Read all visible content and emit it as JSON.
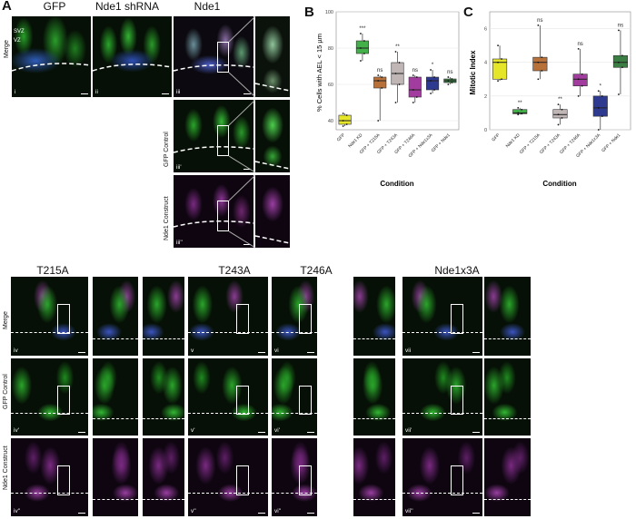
{
  "panels": {
    "A": "A",
    "B": "B",
    "C": "C"
  },
  "top_columns": [
    "GFP",
    "Nde1 shRNA",
    "Nde1"
  ],
  "row_labels": {
    "merge": "Merge",
    "gfp_control": "GFP Control",
    "construct": "Nde1 Construct"
  },
  "zones": {
    "svz": "SVZ",
    "vz": "VZ"
  },
  "top_tiles": {
    "i": "i",
    "ii": "ii",
    "iii": "iii",
    "iii_p": "iii'",
    "iii_pp": "iii''"
  },
  "bottom_columns": [
    "T215A",
    "T243A",
    "T246A",
    "Nde1x3A"
  ],
  "bottom_tiles": {
    "iv": [
      "iv",
      "iv'",
      "iv''"
    ],
    "v": [
      "v",
      "v'",
      "v''"
    ],
    "vi": [
      "vi",
      "vi'",
      "vi''"
    ],
    "vii": [
      "vii",
      "vii'",
      "vii''"
    ]
  },
  "chart_data": [
    {
      "type": "box",
      "ylabel": "% Cells with AEL < 15 µm",
      "xlabel": "Condition",
      "categories": [
        "GFP",
        "Nde1 KD",
        "GFP + T215A",
        "GFP + T243A",
        "GFP + T246A",
        "GFP + Nde1x3A",
        "GFP + Nde1"
      ],
      "colors": [
        "#e5e52a",
        "#43b04a",
        "#b9713a",
        "#c0b6b6",
        "#a23c9e",
        "#2d3a8f",
        "#3a7e43"
      ],
      "significance": [
        "",
        "***",
        "ns",
        "**",
        "ns",
        "*",
        "ns"
      ],
      "boxes": [
        {
          "min": 37,
          "q1": 38,
          "median": 40,
          "q3": 43,
          "max": 44
        },
        {
          "min": 73,
          "q1": 77,
          "median": 80,
          "q3": 84,
          "max": 88
        },
        {
          "min": 40,
          "q1": 58,
          "median": 62,
          "q3": 64,
          "max": 65
        },
        {
          "min": 50,
          "q1": 60,
          "median": 66,
          "q3": 72,
          "max": 78
        },
        {
          "min": 50,
          "q1": 53,
          "median": 57,
          "q3": 64,
          "max": 65
        },
        {
          "min": 55,
          "q1": 57,
          "median": 62,
          "q3": 64,
          "max": 68
        },
        {
          "min": 60,
          "q1": 61,
          "median": 62,
          "q3": 63,
          "max": 64
        }
      ],
      "ylim": [
        35,
        100
      ],
      "yticks": [
        40,
        60,
        80,
        100
      ]
    },
    {
      "type": "box",
      "ylabel": "Mitotic Index",
      "xlabel": "Condition",
      "categories": [
        "GFP",
        "Nde1 KD",
        "GFP + T215A",
        "GFP + T243A",
        "GFP + T246A",
        "GFP + Nde1x3A",
        "GFP + Nde1"
      ],
      "colors": [
        "#e5e52a",
        "#43b04a",
        "#b9713a",
        "#c0b6b6",
        "#a23c9e",
        "#2d3a8f",
        "#3a7e43"
      ],
      "significance": [
        "",
        "**",
        "ns",
        "**",
        "ns",
        "*",
        "ns"
      ],
      "boxes": [
        {
          "min": 2.9,
          "q1": 3.0,
          "median": 4.0,
          "q3": 4.2,
          "max": 5.0
        },
        {
          "min": 0.9,
          "q1": 0.95,
          "median": 1.0,
          "q3": 1.2,
          "max": 1.3
        },
        {
          "min": 3.0,
          "q1": 3.5,
          "median": 4.0,
          "q3": 4.3,
          "max": 6.2
        },
        {
          "min": 0.3,
          "q1": 0.7,
          "median": 0.9,
          "q3": 1.2,
          "max": 1.5
        },
        {
          "min": 2.0,
          "q1": 2.6,
          "median": 3.0,
          "q3": 3.3,
          "max": 4.8
        },
        {
          "min": 0.0,
          "q1": 0.8,
          "median": 1.3,
          "q3": 2.0,
          "max": 2.3
        },
        {
          "min": 2.1,
          "q1": 3.7,
          "median": 4.0,
          "q3": 4.4,
          "max": 5.9
        }
      ],
      "ylim": [
        0,
        7
      ],
      "yticks": [
        0,
        2,
        4,
        6
      ]
    }
  ]
}
